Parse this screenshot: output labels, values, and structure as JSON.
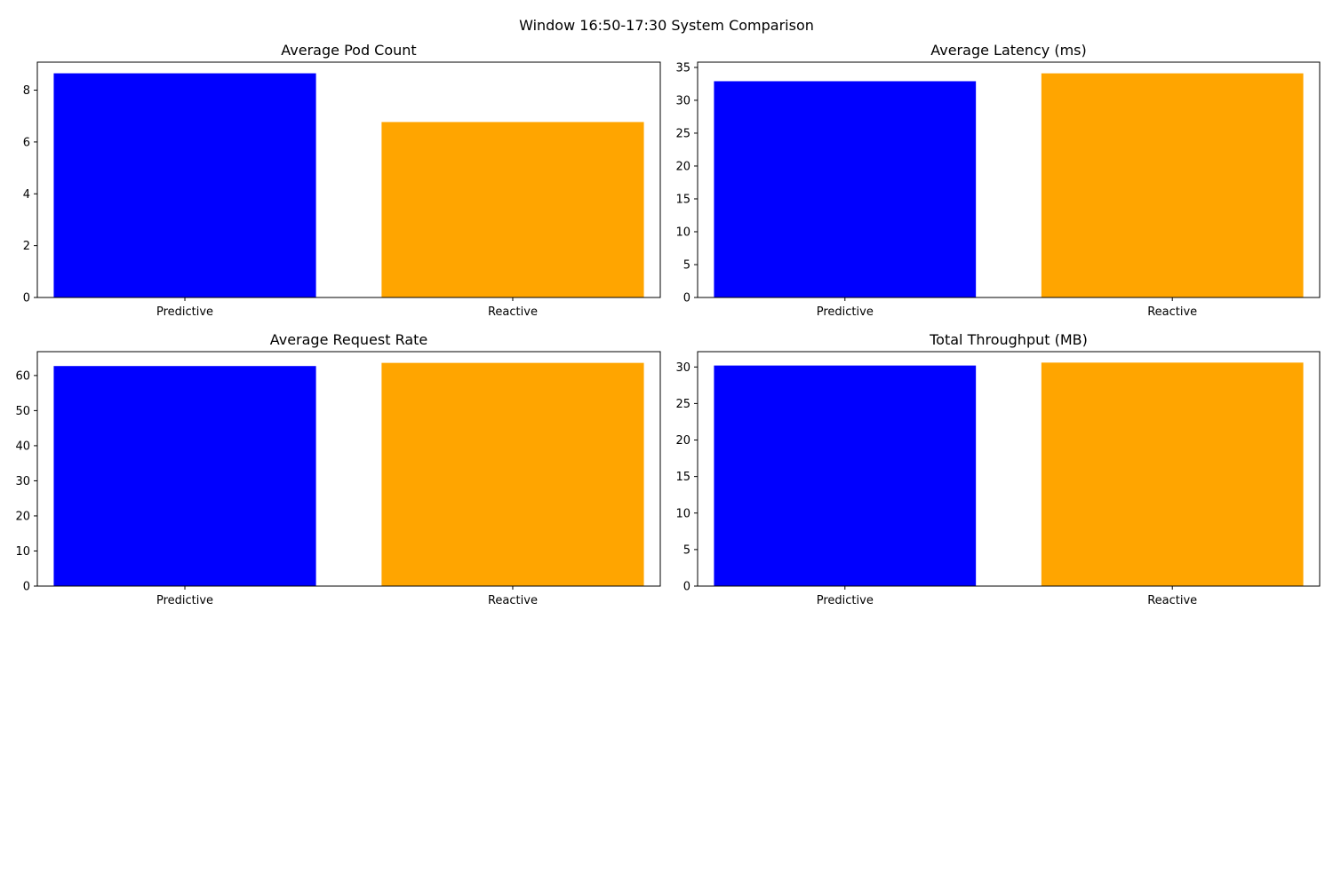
{
  "figure_title": "Window 16:50-17:30 System Comparison",
  "colors": {
    "predictive": "#0000ff",
    "reactive": "#ffa500"
  },
  "chart_data": [
    {
      "type": "bar",
      "title": "Average Pod Count",
      "xlabel": "",
      "ylabel": "",
      "categories": [
        "Predictive",
        "Reactive"
      ],
      "values": [
        8.65,
        6.77
      ],
      "ylim": [
        0,
        9.08
      ],
      "yticks": [
        0,
        2,
        4,
        6,
        8
      ],
      "grid": false
    },
    {
      "type": "bar",
      "title": "Average Latency (ms)",
      "xlabel": "",
      "ylabel": "",
      "categories": [
        "Predictive",
        "Reactive"
      ],
      "values": [
        32.9,
        34.1
      ],
      "ylim": [
        0,
        35.8
      ],
      "yticks": [
        0,
        5,
        10,
        15,
        20,
        25,
        30,
        35
      ],
      "grid": false
    },
    {
      "type": "bar",
      "title": "Average Request Rate",
      "xlabel": "",
      "ylabel": "",
      "categories": [
        "Predictive",
        "Reactive"
      ],
      "values": [
        62.7,
        63.6
      ],
      "ylim": [
        0,
        66.8
      ],
      "yticks": [
        0,
        10,
        20,
        30,
        40,
        50,
        60
      ],
      "grid": false
    },
    {
      "type": "bar",
      "title": "Total Throughput (MB)",
      "xlabel": "",
      "ylabel": "",
      "categories": [
        "Predictive",
        "Reactive"
      ],
      "values": [
        30.2,
        30.6
      ],
      "ylim": [
        0,
        32.1
      ],
      "yticks": [
        0,
        5,
        10,
        15,
        20,
        25,
        30
      ],
      "grid": false
    }
  ]
}
